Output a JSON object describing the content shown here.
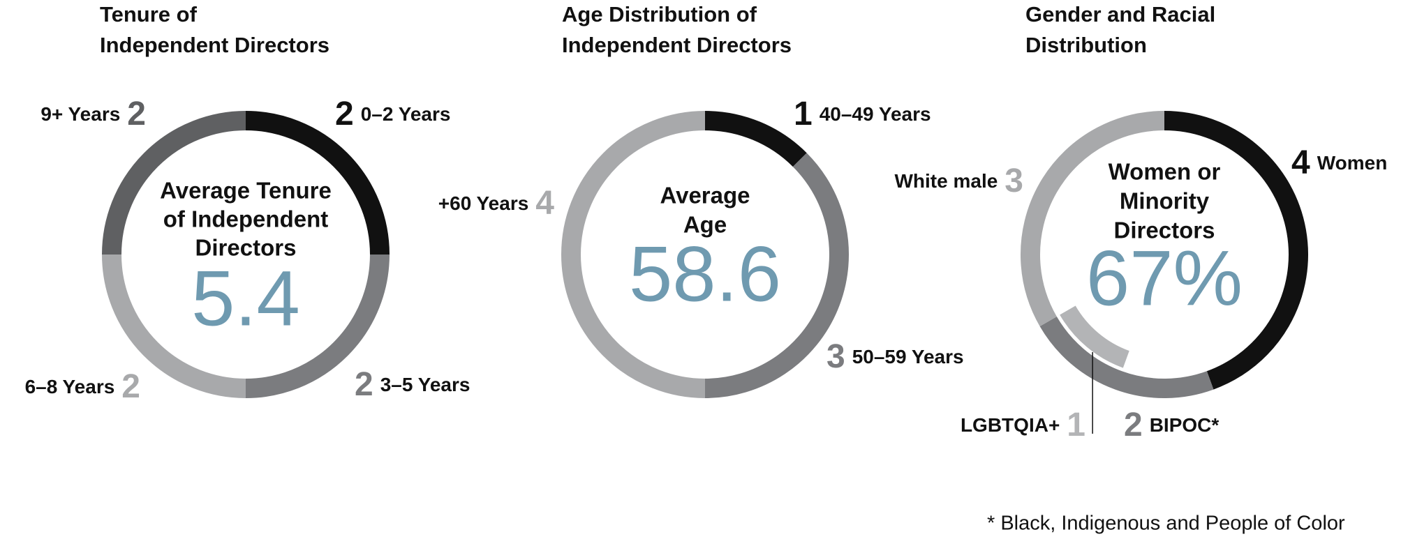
{
  "chart_data": [
    {
      "type": "pie",
      "title": [
        "Tenure of",
        "Independent Directors"
      ],
      "center_label": [
        "Average Tenure",
        "of Independent",
        "Directors"
      ],
      "center_value": 5.4,
      "categories": [
        "0–2 Years",
        "3–5 Years",
        "6–8 Years",
        "9+ Years"
      ],
      "values": [
        2,
        2,
        2,
        2
      ],
      "colors": [
        "#111111",
        "#7b7c7f",
        "#a8a9ab",
        "#5f6062"
      ]
    },
    {
      "type": "pie",
      "title": [
        "Age Distribution of",
        "Independent Directors"
      ],
      "center_label": [
        "Average",
        "Age"
      ],
      "center_value": 58.6,
      "categories": [
        "40–49 Years",
        "50–59 Years",
        "+60 Years"
      ],
      "values": [
        1,
        3,
        4
      ],
      "colors": [
        "#111111",
        "#7b7c7f",
        "#a8a9ab"
      ]
    },
    {
      "type": "pie",
      "title": [
        "Gender and Racial",
        "Distribution"
      ],
      "center_label": [
        "Women or",
        "Minority",
        "Directors"
      ],
      "center_value": 67,
      "center_value_label": "67%",
      "categories": [
        "Women",
        "BIPOC*",
        "White male"
      ],
      "values": [
        4,
        2,
        3
      ],
      "colors": [
        "#111111",
        "#7b7c7f",
        "#a8a9ab"
      ],
      "inner_ring": {
        "name": "LGBTQIA+",
        "value": 1,
        "color": "#b3b4b6"
      }
    }
  ],
  "footnote": "* Black, Indigenous and People of Color"
}
